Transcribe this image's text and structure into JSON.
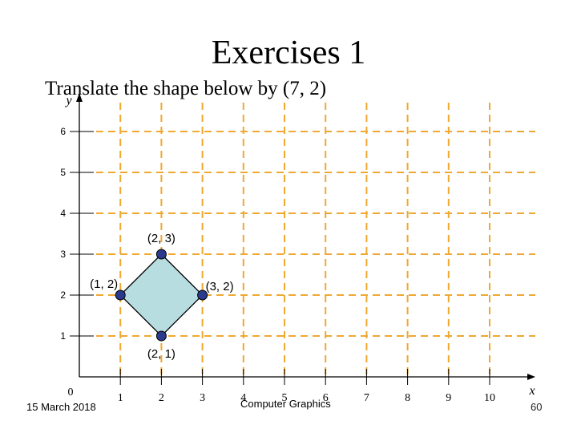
{
  "slide": {
    "title": "Exercises 1",
    "instruction": "Translate the shape below by (7, 2)",
    "footer_date": "15 March 2018",
    "footer_center": "Computer Graphics",
    "footer_page": "60"
  },
  "graph": {
    "x_axis_label": "x",
    "y_axis_label": "y",
    "origin_label": "0",
    "x_ticks": [
      "1",
      "2",
      "3",
      "4",
      "5",
      "6",
      "7",
      "8",
      "9",
      "10"
    ],
    "y_ticks": [
      "1",
      "2",
      "3",
      "4",
      "5",
      "6"
    ],
    "grid_color": "#f0a830",
    "shape_fill": "#b8dde0",
    "point_color": "#2b3a8c",
    "shape": [
      {
        "x": 2,
        "y": 3,
        "label": "(2, 3)"
      },
      {
        "x": 3,
        "y": 2,
        "label": "(3, 2)"
      },
      {
        "x": 2,
        "y": 1,
        "label": "(2, 1)"
      },
      {
        "x": 1,
        "y": 2,
        "label": "(1, 2)"
      }
    ]
  }
}
